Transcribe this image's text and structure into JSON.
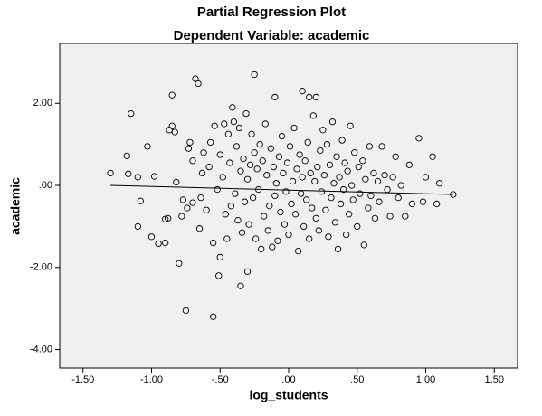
{
  "chart_data": {
    "type": "scatter",
    "title": "Partial Regression Plot",
    "subtitle": "Dependent Variable: academic",
    "x_label": "log_students",
    "y_label": "academic",
    "xlim": [
      -1.67,
      1.67
    ],
    "ylim": [
      -4.45,
      3.46
    ],
    "xticks": [
      {
        "value": -1.5,
        "label": "-1.50"
      },
      {
        "value": -1.0,
        "label": "-1.00"
      },
      {
        "value": -0.5,
        "label": "-.50"
      },
      {
        "value": 0,
        "label": ".00"
      },
      {
        "value": 0.5,
        "label": ".50"
      },
      {
        "value": 1.0,
        "label": "1.00"
      },
      {
        "value": 1.5,
        "label": "1.50"
      }
    ],
    "yticks": [
      {
        "value": 2.0,
        "label": "2.00"
      },
      {
        "value": 0,
        "label": ".00"
      },
      {
        "value": -2.0,
        "label": "-2.00"
      },
      {
        "value": -4.0,
        "label": "-4.00"
      }
    ],
    "color": "#000000",
    "x": [
      -1.3,
      -1.18,
      -1.15,
      -1.17,
      -1.1,
      -1.08,
      -1.1,
      -1.03,
      -1.0,
      -0.98,
      -0.95,
      -0.9,
      -0.9,
      -0.88,
      -0.85,
      -0.85,
      -0.87,
      -0.83,
      -0.82,
      -0.8,
      -0.78,
      -0.77,
      -0.75,
      -0.74,
      -0.73,
      -0.72,
      -0.7,
      -0.7,
      -0.68,
      -0.66,
      -0.65,
      -0.64,
      -0.63,
      -0.62,
      -0.6,
      -0.58,
      -0.57,
      -0.55,
      -0.55,
      -0.54,
      -0.52,
      -0.51,
      -0.5,
      -0.5,
      -0.48,
      -0.47,
      -0.46,
      -0.45,
      -0.44,
      -0.43,
      -0.42,
      -0.41,
      -0.4,
      -0.39,
      -0.38,
      -0.37,
      -0.36,
      -0.35,
      -0.35,
      -0.34,
      -0.33,
      -0.32,
      -0.31,
      -0.3,
      -0.3,
      -0.29,
      -0.28,
      -0.27,
      -0.26,
      -0.25,
      -0.25,
      -0.24,
      -0.23,
      -0.22,
      -0.21,
      -0.2,
      -0.19,
      -0.18,
      -0.17,
      -0.16,
      -0.15,
      -0.14,
      -0.13,
      -0.12,
      -0.11,
      -0.1,
      -0.1,
      -0.09,
      -0.08,
      -0.07,
      -0.06,
      -0.05,
      -0.04,
      -0.03,
      -0.02,
      -0.01,
      0.0,
      0.01,
      0.02,
      0.03,
      0.04,
      0.05,
      0.06,
      0.07,
      0.08,
      0.09,
      0.1,
      0.1,
      0.11,
      0.12,
      0.13,
      0.14,
      0.15,
      0.15,
      0.16,
      0.17,
      0.18,
      0.19,
      0.2,
      0.2,
      0.21,
      0.22,
      0.23,
      0.24,
      0.25,
      0.26,
      0.27,
      0.28,
      0.29,
      0.3,
      0.31,
      0.32,
      0.33,
      0.34,
      0.35,
      0.36,
      0.37,
      0.38,
      0.39,
      0.4,
      0.41,
      0.42,
      0.43,
      0.44,
      0.45,
      0.46,
      0.47,
      0.48,
      0.5,
      0.51,
      0.52,
      0.54,
      0.55,
      0.56,
      0.58,
      0.59,
      0.6,
      0.62,
      0.63,
      0.65,
      0.66,
      0.68,
      0.7,
      0.72,
      0.74,
      0.76,
      0.78,
      0.8,
      0.82,
      0.85,
      0.88,
      0.9,
      0.95,
      0.98,
      1.0,
      1.05,
      1.08,
      1.1,
      1.2
    ],
    "y": [
      0.3,
      0.72,
      1.75,
      0.28,
      0.2,
      -0.38,
      -1.0,
      0.95,
      -1.25,
      0.22,
      -1.42,
      -1.4,
      -0.82,
      -0.8,
      2.2,
      1.45,
      1.35,
      1.3,
      0.08,
      -1.9,
      -0.75,
      -0.35,
      -3.05,
      -0.55,
      0.9,
      1.05,
      -0.42,
      0.6,
      2.6,
      2.48,
      -1.05,
      -0.3,
      0.3,
      0.8,
      -0.6,
      0.45,
      1.05,
      -3.2,
      -1.4,
      1.45,
      -0.1,
      -2.2,
      0.75,
      -1.75,
      0.2,
      1.5,
      -0.7,
      -1.3,
      1.25,
      0.55,
      -0.5,
      1.9,
      1.55,
      -0.2,
      0.95,
      -0.85,
      1.4,
      -2.45,
      0.35,
      -1.15,
      0.65,
      -0.4,
      1.75,
      -2.1,
      0.15,
      -0.95,
      0.5,
      1.25,
      -0.3,
      2.7,
      0.8,
      -1.3,
      0.4,
      -0.1,
      1.0,
      -1.55,
      0.6,
      -0.75,
      1.5,
      0.25,
      -1.1,
      -0.5,
      0.9,
      -1.5,
      0.45,
      2.15,
      -0.25,
      0.05,
      -1.35,
      0.7,
      -0.65,
      1.2,
      0.3,
      -0.95,
      -0.15,
      0.55,
      -1.2,
      0.95,
      -0.45,
      0.1,
      1.4,
      -0.7,
      0.4,
      -1.6,
      0.75,
      -0.2,
      2.3,
      0.2,
      -1.0,
      0.6,
      -0.35,
      1.05,
      2.15,
      -1.3,
      0.3,
      -0.55,
      1.7,
      0.1,
      2.15,
      -0.8,
      0.45,
      -1.1,
      0.85,
      -0.15,
      1.35,
      0.25,
      -0.6,
      1.0,
      -1.25,
      0.5,
      -0.3,
      1.55,
      0.05,
      -0.9,
      0.7,
      -1.55,
      0.2,
      -0.45,
      1.1,
      -0.1,
      0.55,
      -1.2,
      0.35,
      -0.7,
      1.45,
      0,
      -0.35,
      0.8,
      -1.0,
      0.45,
      -0.2,
      0.6,
      -1.45,
      0.15,
      -0.55,
      0.95,
      -0.25,
      0.3,
      -0.8,
      0.1,
      -0.4,
      0.95,
      0.25,
      -0.1,
      -0.75,
      0.2,
      0.7,
      -0.3,
      0,
      -0.75,
      0.5,
      -0.45,
      1.15,
      -0.4,
      0.2,
      0.7,
      -0.45,
      0.05,
      -0.22
    ],
    "fit_line": {
      "x": [
        -1.3,
        1.2
      ],
      "y": [
        0.0,
        -0.22
      ]
    }
  }
}
